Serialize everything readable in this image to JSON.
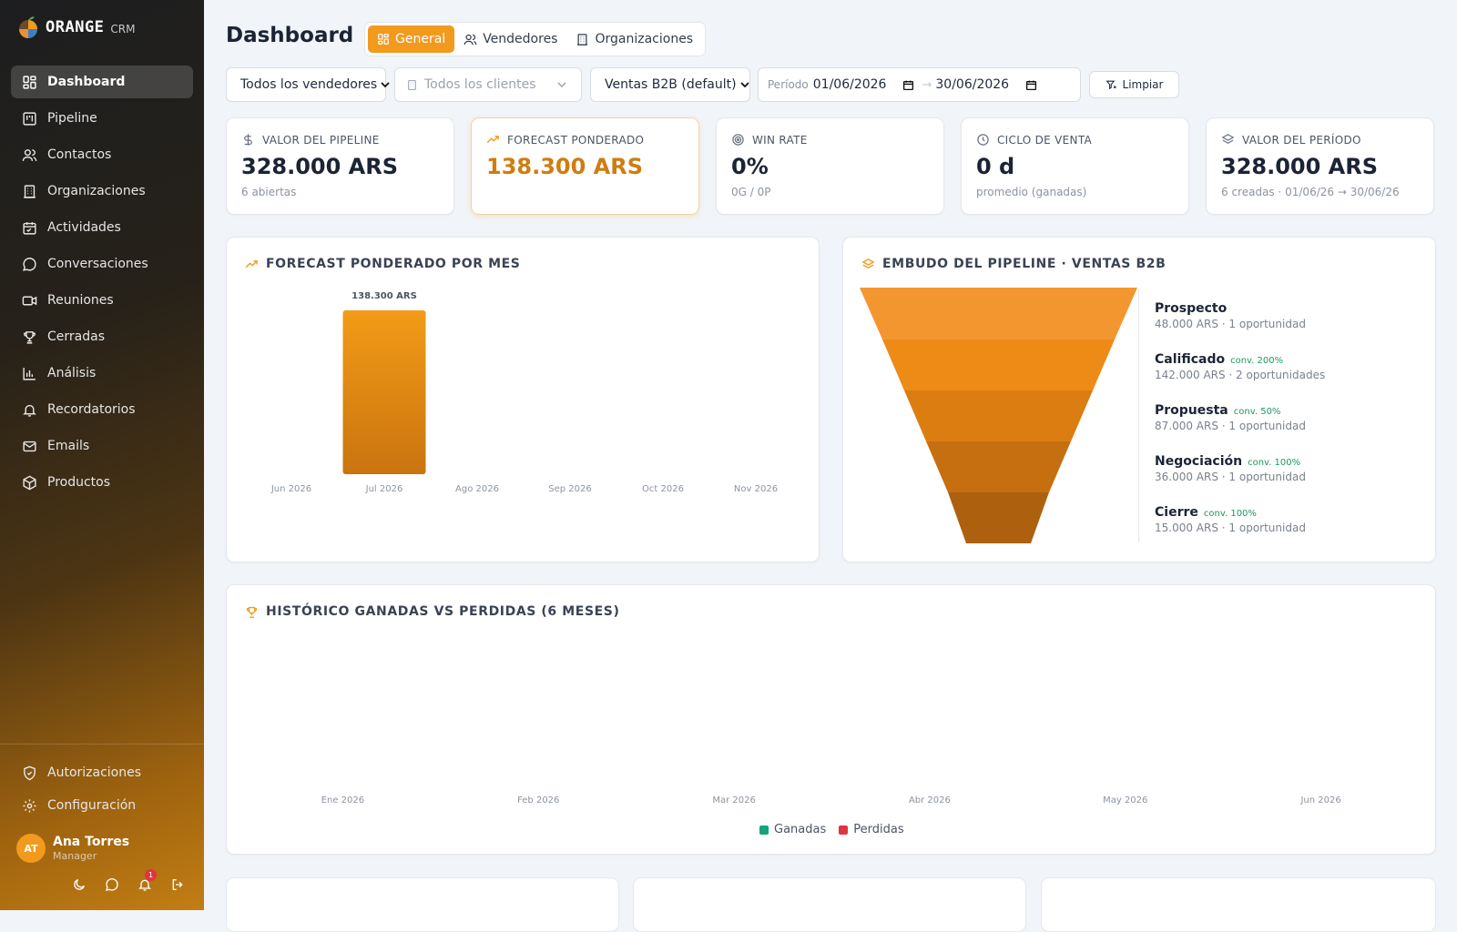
{
  "app": {
    "brand": "ORANGE",
    "brand_sub": "CRM"
  },
  "sidebar": {
    "items": [
      {
        "label": "Dashboard",
        "icon": "dashboard-icon",
        "active": true
      },
      {
        "label": "Pipeline",
        "icon": "kanban-icon"
      },
      {
        "label": "Contactos",
        "icon": "users-icon"
      },
      {
        "label": "Organizaciones",
        "icon": "building-icon"
      },
      {
        "label": "Actividades",
        "icon": "calendar-icon"
      },
      {
        "label": "Conversaciones",
        "icon": "chat-icon"
      },
      {
        "label": "Reuniones",
        "icon": "video-icon"
      },
      {
        "label": "Cerradas",
        "icon": "trophy-icon"
      },
      {
        "label": "Análisis",
        "icon": "bar-chart-icon"
      },
      {
        "label": "Recordatorios",
        "icon": "bell-icon"
      },
      {
        "label": "Emails",
        "icon": "mail-icon"
      },
      {
        "label": "Productos",
        "icon": "package-icon"
      }
    ],
    "bottom_items": [
      {
        "label": "Autorizaciones",
        "icon": "shield-check-icon"
      },
      {
        "label": "Configuración",
        "icon": "gear-icon"
      }
    ],
    "user": {
      "initials": "AT",
      "name": "Ana Torres",
      "role": "Manager"
    },
    "notification_count": "1"
  },
  "header": {
    "title": "Dashboard",
    "tabs": [
      {
        "label": "General",
        "active": true
      },
      {
        "label": "Vendedores"
      },
      {
        "label": "Organizaciones"
      }
    ]
  },
  "filters": {
    "sellers": "Todos los vendedores",
    "clients_placeholder": "Todos los clientes",
    "pipeline": "Ventas B2B (default)",
    "period_label": "Período",
    "date_from": "01/06/2026",
    "date_to": "30/06/2026",
    "clear_label": "Limpiar"
  },
  "kpis": [
    {
      "label": "VALOR DEL PIPELINE",
      "value": "328.000 ARS",
      "sub": "6 abiertas",
      "icon": "dollar-icon"
    },
    {
      "label": "FORECAST PONDERADO",
      "value": "138.300 ARS",
      "sub": "",
      "icon": "trending-up-icon"
    },
    {
      "label": "WIN RATE",
      "value": "0%",
      "sub": "0G / 0P",
      "icon": "target-icon"
    },
    {
      "label": "CICLO DE VENTA",
      "value": "0 d",
      "sub": "promedio (ganadas)",
      "icon": "clock-icon"
    },
    {
      "label": "VALOR DEL PERÍODO",
      "value": "328.000 ARS",
      "sub": "6 creadas · 01/06/26 → 30/06/26",
      "icon": "layers-icon"
    }
  ],
  "colors": {
    "accent": "#f29a1e",
    "won": "#16a37a",
    "lost": "#e0353e"
  },
  "forecast_card": {
    "title": "FORECAST PONDERADO POR MES"
  },
  "funnel_card": {
    "title": "EMBUDO DEL PIPELINE · VENTAS B2B",
    "stages": [
      {
        "name": "Prospecto",
        "conv": "",
        "sub": "48.000 ARS · 1 oportunidad"
      },
      {
        "name": "Calificado",
        "conv": "conv. 200%",
        "sub": "142.000 ARS · 2 oportunidades"
      },
      {
        "name": "Propuesta",
        "conv": "conv. 50%",
        "sub": "87.000 ARS · 1 oportunidad"
      },
      {
        "name": "Negociación",
        "conv": "conv. 100%",
        "sub": "36.000 ARS · 1 oportunidad"
      },
      {
        "name": "Cierre",
        "conv": "conv. 100%",
        "sub": "15.000 ARS · 1 oportunidad"
      }
    ]
  },
  "history_card": {
    "title": "HISTÓRICO GANADAS VS PERDIDAS (6 MESES)"
  },
  "chart_data": [
    {
      "type": "bar",
      "title": "FORECAST PONDERADO POR MES",
      "categories": [
        "Jun 2026",
        "Jul 2026",
        "Ago 2026",
        "Sep 2026",
        "Oct 2026",
        "Nov 2026"
      ],
      "values": [
        0,
        138300,
        0,
        0,
        0,
        0
      ],
      "data_labels": [
        "",
        "138.300 ARS",
        "",
        "",
        "",
        ""
      ],
      "grid": false
    },
    {
      "type": "bar",
      "title": "HISTÓRICO GANADAS VS PERDIDAS (6 MESES)",
      "categories": [
        "Ene 2026",
        "Feb 2026",
        "Mar 2026",
        "Abr 2026",
        "May 2026",
        "Jun 2026"
      ],
      "series": [
        {
          "name": "Ganadas",
          "values": [
            0,
            0,
            0,
            0,
            0,
            0
          ]
        },
        {
          "name": "Perdidas",
          "values": [
            0,
            0,
            0,
            0,
            0,
            0
          ]
        }
      ],
      "legend": "bottom",
      "grid": false
    }
  ]
}
